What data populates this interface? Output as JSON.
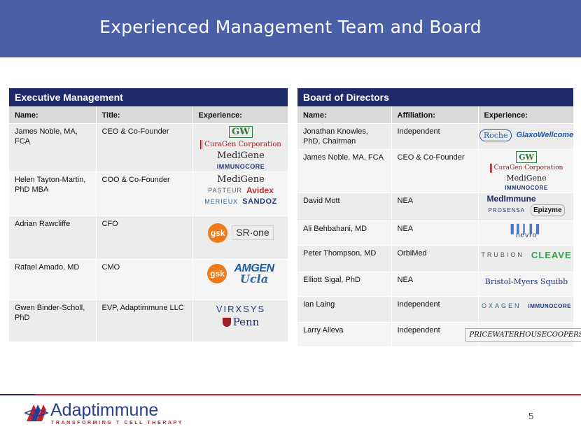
{
  "title": "Experienced Management Team and Board",
  "executive": {
    "heading": "Executive Management",
    "columns": [
      "Name:",
      "Title:",
      "Experience:"
    ],
    "rows": [
      {
        "name": "James Noble, MA, FCA",
        "title": "CEO & Co-Founder",
        "logos": [
          "GW",
          "CuraGen Corporation",
          "MediGene",
          "IMMUNOCORE"
        ]
      },
      {
        "name": "Helen Tayton-Martin, PhD MBA",
        "title": "COO & Co-Founder",
        "logos": [
          "MediGene",
          "PASTEUR",
          "Avidex",
          "MERIEUX",
          "SANDOZ"
        ]
      },
      {
        "name": "Adrian Rawcliffe",
        "title": "CFO",
        "logos": [
          "gsk",
          "SR·one"
        ]
      },
      {
        "name": "Rafael Amado, MD",
        "title": "CMO",
        "logos": [
          "gsk",
          "AMGEN",
          "Ucla"
        ]
      },
      {
        "name": "Gwen Binder-Scholl, PhD",
        "title": "EVP, Adaptimmune LLC",
        "logos": [
          "VIRXSYS",
          "Penn"
        ]
      }
    ]
  },
  "board": {
    "heading": "Board of Directors",
    "columns": [
      "Name:",
      "Affiliation:",
      "Experience:"
    ],
    "rows": [
      {
        "name": "Jonathan Knowles, PhD, Chairman",
        "affiliation": "Independent",
        "logos": [
          "Roche",
          "GlaxoWellcome"
        ]
      },
      {
        "name": "James Noble, MA, FCA",
        "affiliation": "CEO & Co-Founder",
        "logos": [
          "GW",
          "CuraGen Corporation",
          "MediGene",
          "IMMUNOCORE"
        ]
      },
      {
        "name": "David Mott",
        "affiliation": "NEA",
        "logos": [
          "MedImmune",
          "PROSENSA",
          "Epizyme"
        ]
      },
      {
        "name": "Ali Behbahani, MD",
        "affiliation": "NEA",
        "logos": [
          "nevro"
        ]
      },
      {
        "name": "Peter Thompson, MD",
        "affiliation": "OrbiMed",
        "logos": [
          "TRUBION",
          "CLEAVE"
        ]
      },
      {
        "name": "Elliott Sigal, PhD",
        "affiliation": "NEA",
        "logos": [
          "Bristol-Myers Squibb"
        ]
      },
      {
        "name": "Ian Laing",
        "affiliation": "Independent",
        "logos": [
          "OXAGEN",
          "IMMUNOCORE"
        ]
      },
      {
        "name": "Larry Alleva",
        "affiliation": "Independent",
        "logos": [
          "PRICEWATERHOUSECOOPERS"
        ]
      }
    ]
  },
  "footer": {
    "brand_name": "Adaptimmune",
    "brand_tagline": "TRANSFORMING T CELL THERAPY",
    "page_number": "5"
  },
  "colors": {
    "header": "#4a5fa8",
    "panel_title": "#1f2a6b",
    "accent_red": "#c8202e"
  }
}
